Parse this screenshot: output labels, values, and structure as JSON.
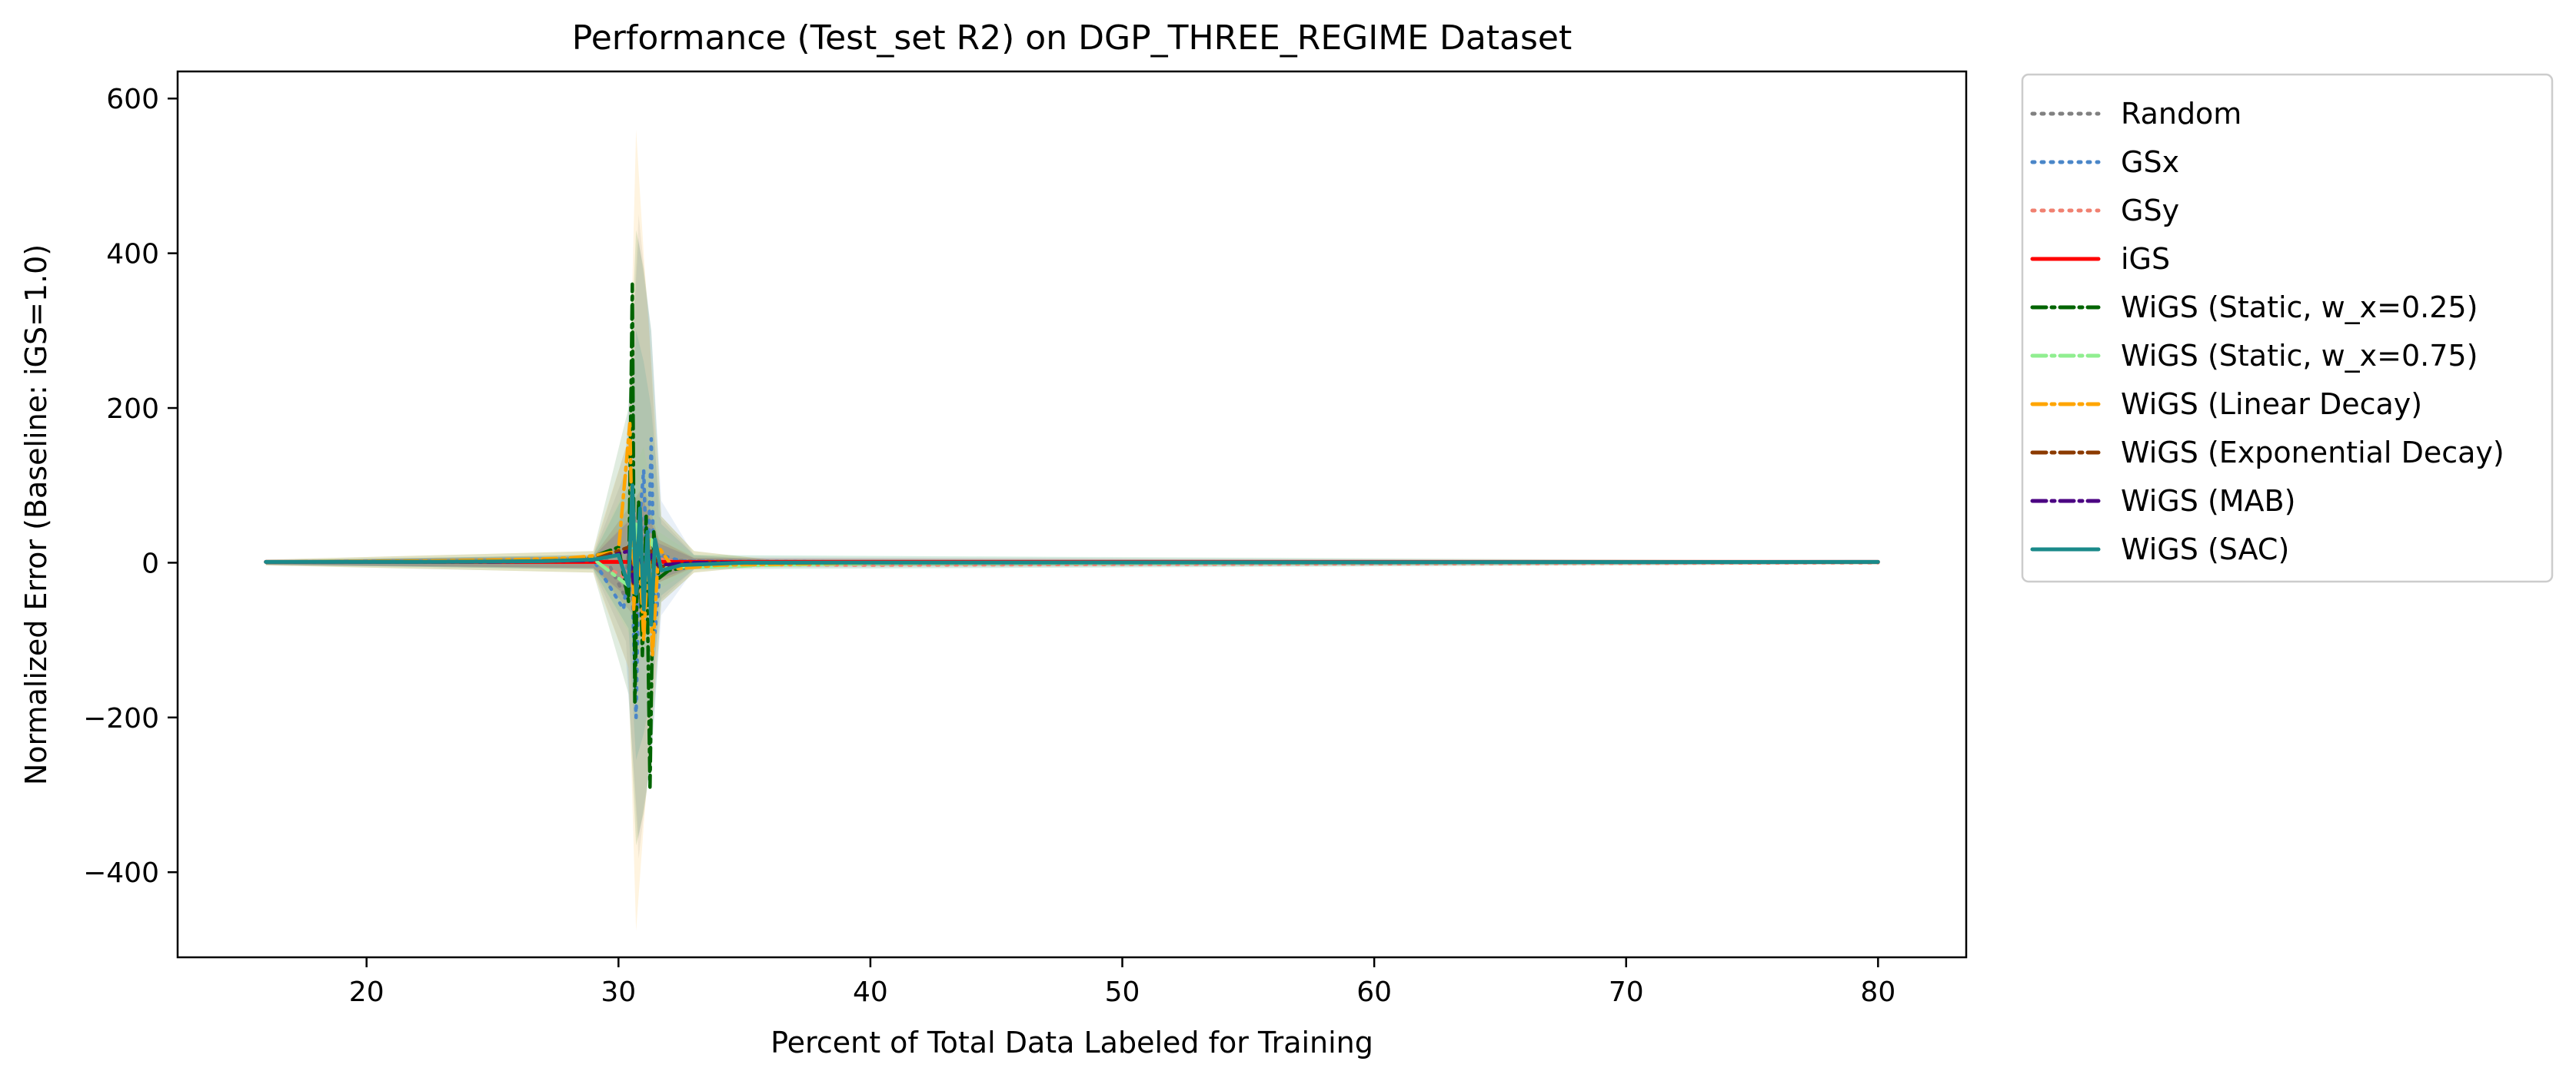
{
  "chart_data": {
    "type": "line",
    "title": "Performance (Test_set R2) on DGP_THREE_REGIME Dataset",
    "xlabel": "Percent of Total Data Labeled for Training",
    "ylabel": "Normalized Error (Baseline: iGS=1.0)",
    "xlim": [
      12.5,
      83.5
    ],
    "ylim": [
      -510,
      635
    ],
    "xticks": [
      20,
      30,
      40,
      50,
      60,
      70,
      80
    ],
    "yticks": [
      -400,
      -200,
      0,
      200,
      400,
      600
    ],
    "xtick_labels": [
      "20",
      "30",
      "40",
      "50",
      "60",
      "70",
      "80"
    ],
    "ytick_labels": [
      "−400",
      "−200",
      "0",
      "200",
      "400",
      "600"
    ],
    "grid": false,
    "legend_position": "outside-right",
    "series": [
      {
        "name": "Random",
        "color": "#808080",
        "dash": "dotted",
        "points": [
          [
            16,
            1
          ],
          [
            25,
            1
          ],
          [
            28,
            2
          ],
          [
            29.5,
            6
          ],
          [
            30.2,
            -40
          ],
          [
            30.5,
            40
          ],
          [
            30.7,
            -80
          ],
          [
            30.9,
            60
          ],
          [
            31.1,
            -30
          ],
          [
            31.4,
            20
          ],
          [
            32,
            3
          ],
          [
            35,
            1
          ],
          [
            40,
            1
          ],
          [
            80,
            1
          ]
        ],
        "band": [
          [
            16,
            3
          ],
          [
            29,
            10
          ],
          [
            30.3,
            120
          ],
          [
            30.8,
            450
          ],
          [
            31.2,
            320
          ],
          [
            31.6,
            60
          ],
          [
            33,
            10
          ],
          [
            36,
            3
          ],
          [
            80,
            2
          ]
        ]
      },
      {
        "name": "GSx",
        "color": "#4a86c8",
        "dash": "dotted",
        "points": [
          [
            16,
            1
          ],
          [
            25,
            1
          ],
          [
            29,
            4
          ],
          [
            30.2,
            -60
          ],
          [
            30.5,
            20
          ],
          [
            30.7,
            -200
          ],
          [
            30.85,
            60
          ],
          [
            31.0,
            120
          ],
          [
            31.15,
            -40
          ],
          [
            31.3,
            160
          ],
          [
            31.45,
            -90
          ],
          [
            31.7,
            10
          ],
          [
            32.5,
            2
          ],
          [
            40,
            1
          ],
          [
            80,
            1
          ]
        ],
        "band": [
          [
            16,
            3
          ],
          [
            29,
            10
          ],
          [
            30.3,
            150
          ],
          [
            30.8,
            420
          ],
          [
            31.3,
            300
          ],
          [
            31.7,
            80
          ],
          [
            33,
            10
          ],
          [
            36,
            3
          ],
          [
            80,
            2
          ]
        ]
      },
      {
        "name": "GSy",
        "color": "#f08070",
        "dash": "dotted",
        "points": [
          [
            16,
            1
          ],
          [
            25,
            1
          ],
          [
            29,
            3
          ],
          [
            30.3,
            -20
          ],
          [
            30.6,
            30
          ],
          [
            30.9,
            -30
          ],
          [
            31.2,
            20
          ],
          [
            31.6,
            5
          ],
          [
            33,
            -2
          ],
          [
            40,
            -3
          ],
          [
            50,
            -2
          ],
          [
            80,
            0
          ]
        ],
        "band": [
          [
            16,
            3
          ],
          [
            29,
            8
          ],
          [
            30.5,
            60
          ],
          [
            31,
            80
          ],
          [
            31.6,
            30
          ],
          [
            33,
            8
          ],
          [
            80,
            3
          ]
        ]
      },
      {
        "name": "iGS",
        "color": "#ff0000",
        "dash": "solid",
        "points": [
          [
            16,
            1
          ],
          [
            80,
            1
          ]
        ],
        "band": [
          [
            16,
            1
          ],
          [
            80,
            1
          ]
        ]
      },
      {
        "name": "WiGS (Static, w_x=0.25)",
        "color": "#006400",
        "dash": "dashdot",
        "points": [
          [
            16,
            1
          ],
          [
            22,
            2
          ],
          [
            27,
            3
          ],
          [
            29,
            8
          ],
          [
            30,
            20
          ],
          [
            30.4,
            -50
          ],
          [
            30.55,
            360
          ],
          [
            30.65,
            -180
          ],
          [
            30.8,
            80
          ],
          [
            30.95,
            -120
          ],
          [
            31.1,
            60
          ],
          [
            31.25,
            -290
          ],
          [
            31.4,
            40
          ],
          [
            31.6,
            -20
          ],
          [
            32,
            -10
          ],
          [
            33,
            -4
          ],
          [
            35,
            -2
          ],
          [
            40,
            0
          ],
          [
            80,
            1
          ]
        ],
        "band": [
          [
            16,
            4
          ],
          [
            29,
            15
          ],
          [
            30.4,
            200
          ],
          [
            30.7,
            430
          ],
          [
            31.0,
            380
          ],
          [
            31.3,
            300
          ],
          [
            31.7,
            60
          ],
          [
            33,
            15
          ],
          [
            36,
            4
          ],
          [
            80,
            2
          ]
        ]
      },
      {
        "name": "WiGS (Static, w_x=0.75)",
        "color": "#90ee90",
        "dash": "dashdot",
        "points": [
          [
            16,
            1
          ],
          [
            25,
            2
          ],
          [
            29,
            5
          ],
          [
            30.4,
            -30
          ],
          [
            30.7,
            50
          ],
          [
            31.0,
            -40
          ],
          [
            31.3,
            30
          ],
          [
            31.7,
            -5
          ],
          [
            33,
            -6
          ],
          [
            36,
            -3
          ],
          [
            40,
            -1
          ],
          [
            80,
            1
          ]
        ],
        "band": [
          [
            16,
            3
          ],
          [
            29,
            10
          ],
          [
            30.6,
            120
          ],
          [
            31,
            150
          ],
          [
            31.6,
            40
          ],
          [
            33,
            10
          ],
          [
            80,
            3
          ]
        ]
      },
      {
        "name": "WiGS (Linear Decay)",
        "color": "#ffa500",
        "dash": "dashdot",
        "points": [
          [
            16,
            1
          ],
          [
            22,
            2
          ],
          [
            26,
            4
          ],
          [
            28,
            6
          ],
          [
            29,
            9
          ],
          [
            30,
            15
          ],
          [
            30.45,
            180
          ],
          [
            30.6,
            -60
          ],
          [
            30.8,
            40
          ],
          [
            31.0,
            -100
          ],
          [
            31.2,
            30
          ],
          [
            31.35,
            -120
          ],
          [
            31.6,
            20
          ],
          [
            32.2,
            -8
          ],
          [
            34,
            -3
          ],
          [
            40,
            0
          ],
          [
            80,
            1
          ]
        ],
        "band": [
          [
            16,
            4
          ],
          [
            29,
            15
          ],
          [
            30.4,
            160
          ],
          [
            30.7,
            560
          ],
          [
            31.0,
            400
          ],
          [
            31.3,
            260
          ],
          [
            31.7,
            60
          ],
          [
            33,
            15
          ],
          [
            36,
            4
          ],
          [
            80,
            2
          ]
        ]
      },
      {
        "name": "WiGS (Exponential Decay)",
        "color": "#8b3a00",
        "dash": "dashdot",
        "points": [
          [
            16,
            1
          ],
          [
            25,
            1
          ],
          [
            29,
            4
          ],
          [
            30.4,
            20
          ],
          [
            30.6,
            -30
          ],
          [
            30.8,
            30
          ],
          [
            31.0,
            -20
          ],
          [
            31.3,
            15
          ],
          [
            31.6,
            -5
          ],
          [
            33,
            0
          ],
          [
            80,
            1
          ]
        ],
        "band": [
          [
            16,
            3
          ],
          [
            29,
            8
          ],
          [
            30.6,
            80
          ],
          [
            31,
            100
          ],
          [
            31.6,
            30
          ],
          [
            33,
            6
          ],
          [
            80,
            2
          ]
        ]
      },
      {
        "name": "WiGS (MAB)",
        "color": "#4b0082",
        "dash": "dashdot",
        "points": [
          [
            16,
            1
          ],
          [
            25,
            1
          ],
          [
            29,
            3
          ],
          [
            30.4,
            15
          ],
          [
            30.6,
            -25
          ],
          [
            30.8,
            20
          ],
          [
            31.0,
            -15
          ],
          [
            31.3,
            10
          ],
          [
            31.6,
            -3
          ],
          [
            33,
            0
          ],
          [
            80,
            1
          ]
        ],
        "band": [
          [
            16,
            3
          ],
          [
            29,
            8
          ],
          [
            30.6,
            60
          ],
          [
            31,
            80
          ],
          [
            31.6,
            25
          ],
          [
            33,
            6
          ],
          [
            80,
            2
          ]
        ]
      },
      {
        "name": "WiGS (SAC)",
        "color": "#1a8a8a",
        "dash": "solid",
        "points": [
          [
            16,
            1
          ],
          [
            22,
            1
          ],
          [
            27,
            2
          ],
          [
            29,
            4
          ],
          [
            30,
            10
          ],
          [
            30.4,
            -30
          ],
          [
            30.55,
            100
          ],
          [
            30.7,
            -40
          ],
          [
            30.85,
            70
          ],
          [
            31.0,
            -60
          ],
          [
            31.15,
            40
          ],
          [
            31.3,
            -80
          ],
          [
            31.45,
            30
          ],
          [
            31.7,
            -10
          ],
          [
            32.5,
            -3
          ],
          [
            35,
            0
          ],
          [
            80,
            1
          ]
        ],
        "band": [
          [
            16,
            3
          ],
          [
            29,
            10
          ],
          [
            30.4,
            100
          ],
          [
            30.7,
            300
          ],
          [
            31.0,
            260
          ],
          [
            31.3,
            200
          ],
          [
            31.7,
            50
          ],
          [
            33,
            10
          ],
          [
            80,
            2
          ]
        ]
      }
    ]
  }
}
